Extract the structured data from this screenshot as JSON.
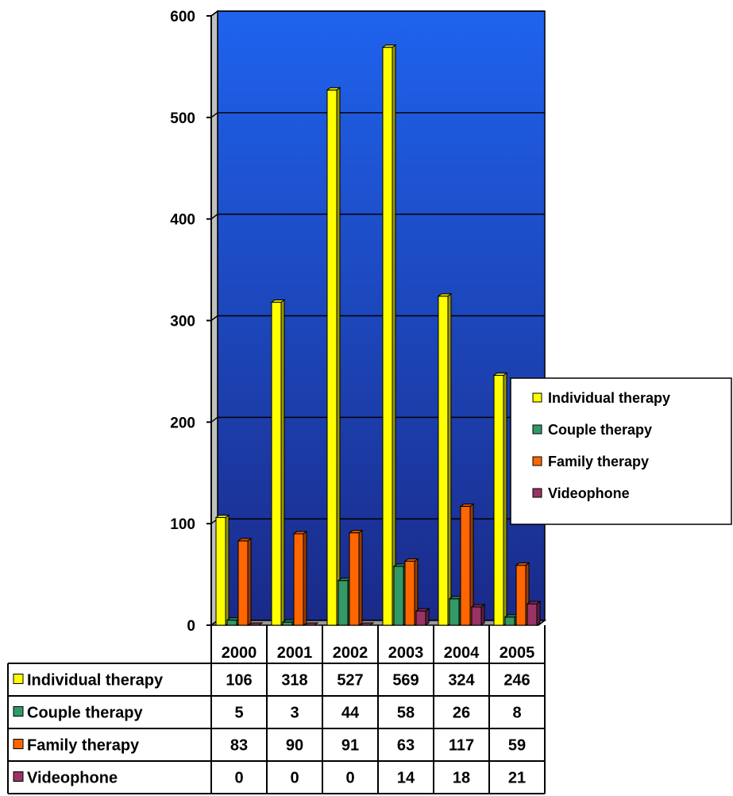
{
  "chart_data": {
    "type": "bar",
    "title": "",
    "xlabel": "",
    "ylabel": "",
    "ylim": [
      0,
      600
    ],
    "yticks": [
      0,
      100,
      200,
      300,
      400,
      500,
      600
    ],
    "grid": true,
    "legend_position": "right",
    "categories": [
      "2000",
      "2001",
      "2002",
      "2003",
      "2004",
      "2005"
    ],
    "series": [
      {
        "name": "Individual therapy",
        "color": "#ffff00",
        "values": [
          106,
          318,
          527,
          569,
          324,
          246
        ]
      },
      {
        "name": "Couple therapy",
        "color": "#339966",
        "values": [
          5,
          3,
          44,
          58,
          26,
          8
        ]
      },
      {
        "name": "Family therapy",
        "color": "#ff6600",
        "values": [
          83,
          90,
          91,
          63,
          117,
          59
        ]
      },
      {
        "name": "Videophone",
        "color": "#993366",
        "values": [
          0,
          0,
          0,
          14,
          18,
          21
        ]
      }
    ],
    "plot_gradient": {
      "top": "#1f63ee",
      "bottom": "#1a2a88"
    },
    "data_table": true
  }
}
